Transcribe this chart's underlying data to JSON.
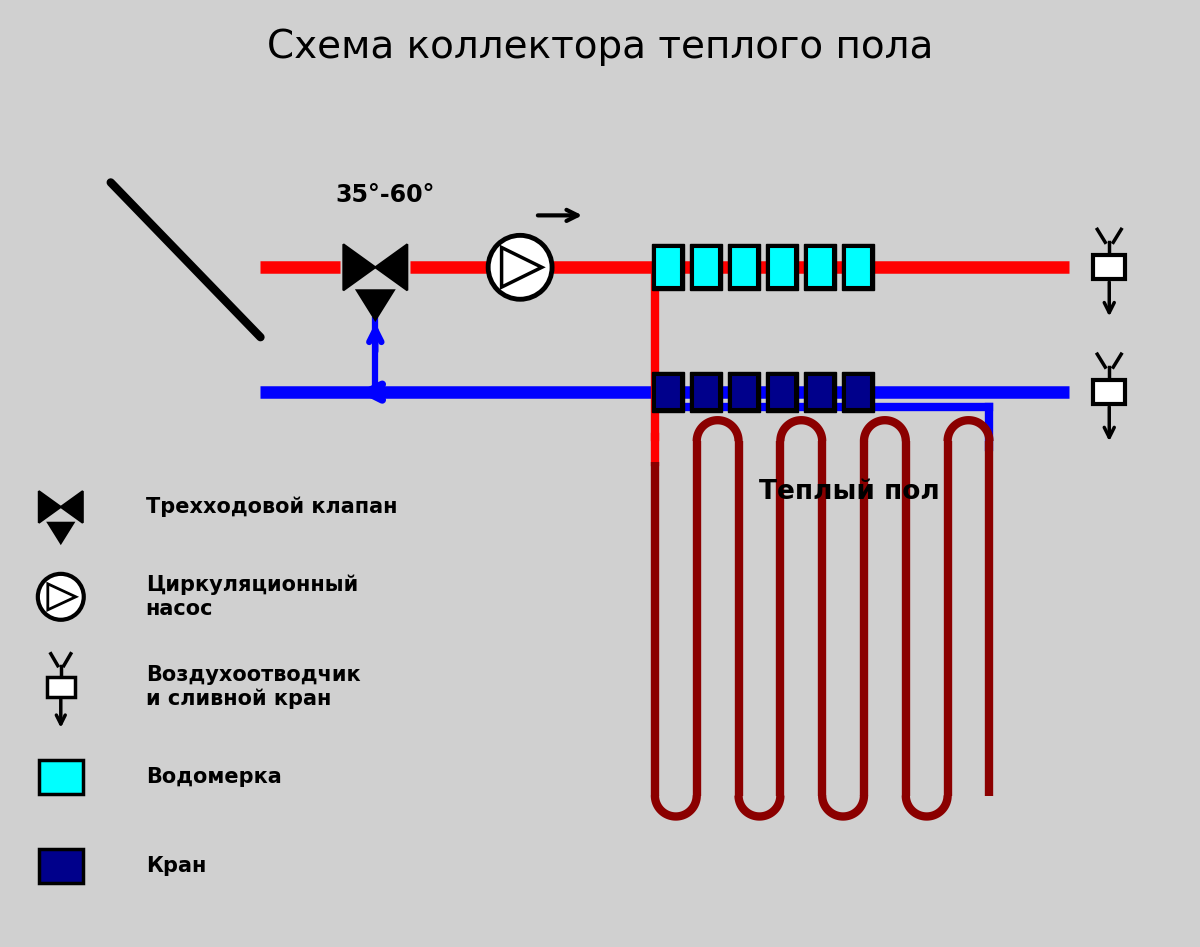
{
  "title": "Схема коллектора теплого пола",
  "bg_color": "#d0d0d0",
  "red_color": "#ff0000",
  "blue_color": "#0000ff",
  "dark_red_color": "#8B0000",
  "cyan_color": "#00ffff",
  "dark_blue_color": "#00008B",
  "black_color": "#000000",
  "white_color": "#ffffff",
  "temp_label": "35°-60°",
  "floor_label": "Теплый пол",
  "legend_valve": "Трехходовой клапан",
  "legend_pump": "Циркуляционный\nнасос",
  "legend_vent": "Воздухоотводчик\nи сливной кран",
  "legend_flow": "Водомерка",
  "legend_crane": "Кран"
}
